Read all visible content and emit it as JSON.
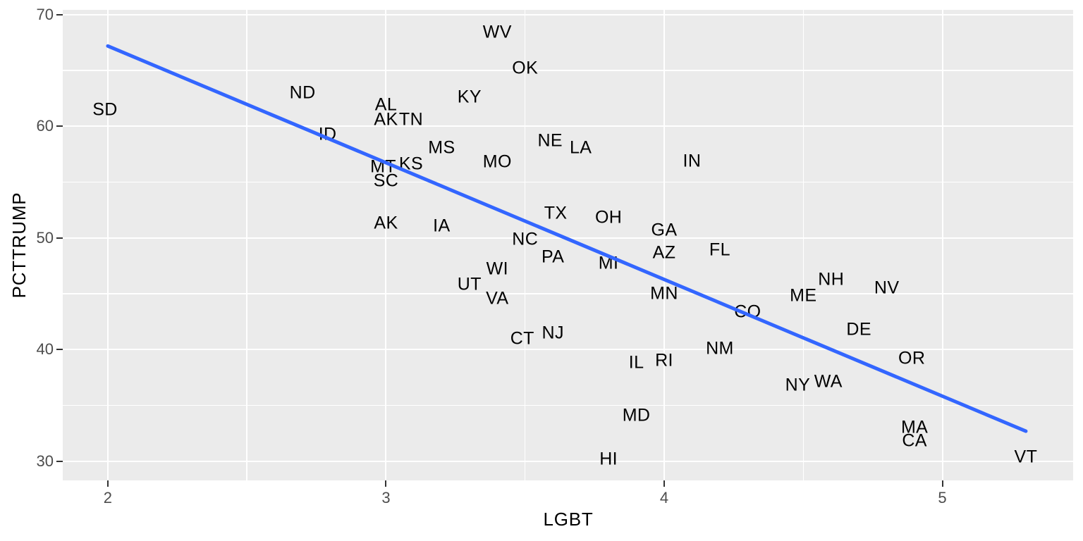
{
  "chart_data": {
    "type": "scatter",
    "title": "",
    "xlabel": "LGBT",
    "ylabel": "PCTTRUMP",
    "xlim": [
      1.838,
      5.47
    ],
    "ylim": [
      28.29,
      70.44
    ],
    "x_ticks": [
      2,
      3,
      4,
      5
    ],
    "x_tick_labels": [
      "2",
      "3",
      "4",
      "5"
    ],
    "y_ticks": [
      30,
      40,
      50,
      60,
      70
    ],
    "y_tick_labels": [
      "30",
      "40",
      "50",
      "60",
      "70"
    ],
    "x_minor": [
      2.5,
      3.5,
      4.5
    ],
    "y_minor": [
      35,
      45,
      55,
      65
    ],
    "grid": true,
    "legend": false,
    "point_style": "text-label",
    "points": [
      {
        "label": "SD",
        "x": 1.99,
        "y": 61.5
      },
      {
        "label": "ND",
        "x": 2.7,
        "y": 63.0
      },
      {
        "label": "ID",
        "x": 2.79,
        "y": 59.3
      },
      {
        "label": "AL",
        "x": 3.0,
        "y": 61.9
      },
      {
        "label": "AK",
        "x": 3.0,
        "y": 60.6
      },
      {
        "label": "TN",
        "x": 3.09,
        "y": 60.6
      },
      {
        "label": "KY",
        "x": 3.3,
        "y": 62.6
      },
      {
        "label": "WV",
        "x": 3.4,
        "y": 68.4
      },
      {
        "label": "OK",
        "x": 3.5,
        "y": 65.2
      },
      {
        "label": "MS",
        "x": 3.2,
        "y": 58.1
      },
      {
        "label": "KS",
        "x": 3.09,
        "y": 56.6
      },
      {
        "label": "MT",
        "x": 2.99,
        "y": 56.4
      },
      {
        "label": "SC",
        "x": 3.0,
        "y": 55.1
      },
      {
        "label": "MO",
        "x": 3.4,
        "y": 56.8
      },
      {
        "label": "NE",
        "x": 3.59,
        "y": 58.7
      },
      {
        "label": "LA",
        "x": 3.7,
        "y": 58.1
      },
      {
        "label": "IN",
        "x": 4.1,
        "y": 56.9
      },
      {
        "label": "AK",
        "x": 3.0,
        "y": 51.3
      },
      {
        "label": "IA",
        "x": 3.2,
        "y": 51.1
      },
      {
        "label": "TX",
        "x": 3.61,
        "y": 52.2
      },
      {
        "label": "OH",
        "x": 3.8,
        "y": 51.8
      },
      {
        "label": "NC",
        "x": 3.5,
        "y": 49.9
      },
      {
        "label": "PA",
        "x": 3.6,
        "y": 48.3
      },
      {
        "label": "GA",
        "x": 4.0,
        "y": 50.7
      },
      {
        "label": "AZ",
        "x": 4.0,
        "y": 48.7
      },
      {
        "label": "FL",
        "x": 4.2,
        "y": 48.9
      },
      {
        "label": "MI",
        "x": 3.8,
        "y": 47.7
      },
      {
        "label": "WI",
        "x": 3.4,
        "y": 47.2
      },
      {
        "label": "UT",
        "x": 3.3,
        "y": 45.8
      },
      {
        "label": "VA",
        "x": 3.4,
        "y": 44.6
      },
      {
        "label": "MN",
        "x": 4.0,
        "y": 45.0
      },
      {
        "label": "CO",
        "x": 4.3,
        "y": 43.4
      },
      {
        "label": "ME",
        "x": 4.5,
        "y": 44.8
      },
      {
        "label": "NH",
        "x": 4.6,
        "y": 46.3
      },
      {
        "label": "NV",
        "x": 4.8,
        "y": 45.5
      },
      {
        "label": "DE",
        "x": 4.7,
        "y": 41.8
      },
      {
        "label": "CT",
        "x": 3.49,
        "y": 41.0
      },
      {
        "label": "NJ",
        "x": 3.6,
        "y": 41.5
      },
      {
        "label": "NM",
        "x": 4.2,
        "y": 40.1
      },
      {
        "label": "IL",
        "x": 3.9,
        "y": 38.8
      },
      {
        "label": "RI",
        "x": 4.0,
        "y": 39.0
      },
      {
        "label": "NY",
        "x": 4.48,
        "y": 36.8
      },
      {
        "label": "WA",
        "x": 4.59,
        "y": 37.1
      },
      {
        "label": "OR",
        "x": 4.89,
        "y": 39.2
      },
      {
        "label": "MD",
        "x": 3.9,
        "y": 34.1
      },
      {
        "label": "HI",
        "x": 3.8,
        "y": 30.2
      },
      {
        "label": "MA",
        "x": 4.9,
        "y": 33.0
      },
      {
        "label": "CA",
        "x": 4.9,
        "y": 31.8
      },
      {
        "label": "VT",
        "x": 5.3,
        "y": 30.4
      }
    ],
    "trend_line": {
      "type": "linear",
      "x1": 2.0,
      "y1": 67.2,
      "x2": 5.3,
      "y2": 32.7,
      "stroke_width": 5
    }
  },
  "colors": {
    "page_bg": "#FFFFFF",
    "panel_bg": "#EBEBEB",
    "grid": "#FFFFFF",
    "trend": "#3366FF",
    "tick_text": "#4D4D4D",
    "tick_mark": "#333333",
    "label_text": "#000000"
  }
}
